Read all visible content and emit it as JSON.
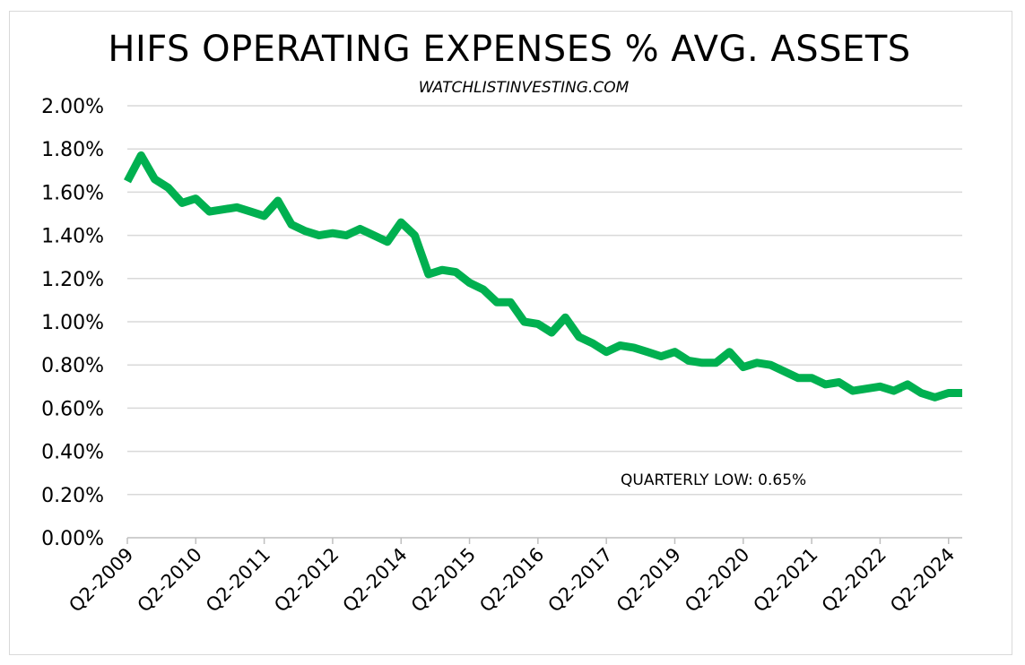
{
  "chart_data": {
    "type": "line",
    "title": "HIFS OPERATING EXPENSES % AVG. ASSETS",
    "subtitle": "WATCHLISTINVESTING.COM",
    "xlabel": "",
    "ylabel": "",
    "ylim": [
      0,
      0.02
    ],
    "y_ticks": [
      "0.00%",
      "0.20%",
      "0.40%",
      "0.60%",
      "0.80%",
      "1.00%",
      "1.20%",
      "1.40%",
      "1.60%",
      "1.80%",
      "2.00%"
    ],
    "x_tick_labels": [
      "Q2-2009",
      "Q2-2010",
      "Q2-2011",
      "Q2-2012",
      "Q2-2014",
      "Q2-2015",
      "Q2-2016",
      "Q2-2017",
      "Q2-2019",
      "Q2-2020",
      "Q2-2021",
      "Q2-2022",
      "Q2-2024"
    ],
    "grid": true,
    "line_color": "#00b050",
    "annotation": "QUARTERLY LOW: 0.65%",
    "series": [
      {
        "values": [
          0.0165,
          0.0177,
          0.0166,
          0.0162,
          0.0155,
          0.0157,
          0.0151,
          0.0152,
          0.0153,
          0.0151,
          0.0149,
          0.0156,
          0.0145,
          0.0142,
          0.014,
          0.0141,
          0.014,
          0.0143,
          0.014,
          0.0137,
          0.0146,
          0.014,
          0.0122,
          0.0124,
          0.0123,
          0.0118,
          0.0115,
          0.0109,
          0.0109,
          0.01,
          0.0099,
          0.0095,
          0.0102,
          0.0093,
          0.009,
          0.0086,
          0.0089,
          0.0088,
          0.0086,
          0.0084,
          0.0086,
          0.0082,
          0.0081,
          0.0081,
          0.0086,
          0.0079,
          0.0081,
          0.008,
          0.0077,
          0.0074,
          0.0074,
          0.0071,
          0.0072,
          0.0068,
          0.0069,
          0.007,
          0.0068,
          0.0071,
          0.0067,
          0.0065,
          0.0067,
          0.0067
        ]
      }
    ]
  }
}
